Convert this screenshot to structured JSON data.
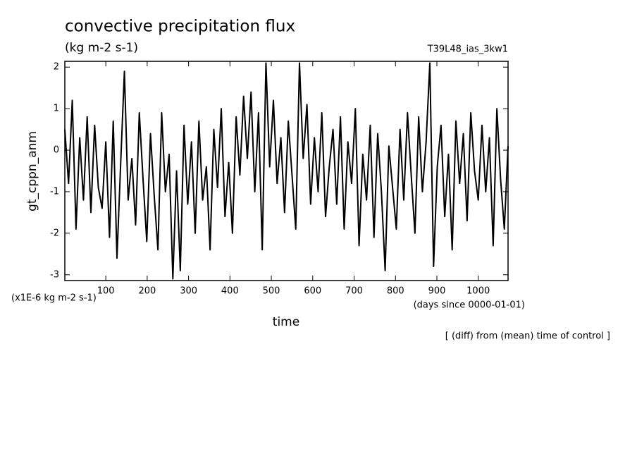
{
  "chart_data": {
    "type": "line",
    "title": "convective precipitation flux",
    "subtitle": "(kg m-2 s-1)",
    "run_label": "T39L48_ias_3kw1",
    "y_label": "gt_cppn_anm",
    "y_unit_note": "(x1E-6 kg m-2 s-1)",
    "x_unit_note": "(days since 0000-01-01)",
    "x_label": "time",
    "footnote": "[ (diff) from (mean) time of control ]",
    "xlim": [
      1,
      1072
    ],
    "ylim": [
      -3.14,
      2.14
    ],
    "xticks": [
      100,
      200,
      300,
      400,
      500,
      600,
      700,
      800,
      900,
      1000
    ],
    "yticks": [
      -3,
      -2,
      -1,
      0,
      1,
      2
    ],
    "series": [
      {
        "color": "#000000",
        "x": [
          1,
          10,
          19,
          28,
          37,
          46,
          55,
          64,
          73,
          82,
          91,
          100,
          109,
          118,
          127,
          136,
          145,
          154,
          163,
          172,
          181,
          190,
          199,
          208,
          217,
          226,
          235,
          244,
          253,
          262,
          271,
          280,
          289,
          298,
          307,
          316,
          325,
          334,
          343,
          352,
          361,
          370,
          379,
          388,
          397,
          406,
          415,
          424,
          433,
          442,
          451,
          460,
          469,
          478,
          487,
          496,
          505,
          514,
          523,
          532,
          541,
          550,
          559,
          568,
          577,
          586,
          595,
          604,
          613,
          622,
          631,
          640,
          649,
          658,
          667,
          676,
          685,
          694,
          703,
          712,
          721,
          730,
          739,
          748,
          757,
          766,
          775,
          784,
          793,
          802,
          811,
          820,
          829,
          838,
          847,
          856,
          865,
          874,
          883,
          892,
          901,
          910,
          919,
          928,
          937,
          946,
          955,
          964,
          973,
          982,
          991,
          1000,
          1009,
          1018,
          1027,
          1036,
          1045,
          1054,
          1063,
          1072
        ],
        "values": [
          0.5,
          -0.8,
          1.2,
          -1.9,
          0.3,
          -1.2,
          0.8,
          -1.5,
          0.6,
          -0.9,
          -1.4,
          0.2,
          -2.1,
          0.7,
          -2.6,
          -0.3,
          1.9,
          -1.2,
          -0.2,
          -1.8,
          0.9,
          -0.7,
          -2.2,
          0.4,
          -1.1,
          -2.4,
          0.9,
          -1.0,
          -0.1,
          -3.1,
          -0.5,
          -2.9,
          0.6,
          -1.3,
          0.2,
          -2.0,
          0.7,
          -1.2,
          -0.4,
          -2.4,
          0.5,
          -0.9,
          1.0,
          -1.6,
          -0.3,
          -2.0,
          0.8,
          -0.6,
          1.3,
          -0.2,
          1.4,
          -1.0,
          0.9,
          -2.4,
          2.1,
          -0.4,
          1.2,
          -0.8,
          0.3,
          -1.5,
          0.7,
          -0.6,
          -1.9,
          2.1,
          -0.2,
          1.1,
          -1.3,
          0.3,
          -1.0,
          0.9,
          -1.6,
          -0.4,
          0.5,
          -1.3,
          0.8,
          -1.9,
          0.2,
          -0.8,
          1.0,
          -2.3,
          -0.1,
          -1.2,
          0.6,
          -2.1,
          0.4,
          -1.0,
          -2.9,
          0.1,
          -0.9,
          -1.9,
          0.5,
          -1.2,
          0.9,
          -0.6,
          -2.0,
          0.8,
          -1.0,
          0.2,
          2.1,
          -2.8,
          -0.4,
          0.6,
          -1.6,
          -0.1,
          -2.4,
          0.7,
          -0.8,
          0.4,
          -1.7,
          0.9,
          -0.5,
          -1.2,
          0.6,
          -1.0,
          0.3,
          -2.3,
          1.0,
          -0.7,
          -1.9,
          0.1
        ]
      }
    ]
  }
}
